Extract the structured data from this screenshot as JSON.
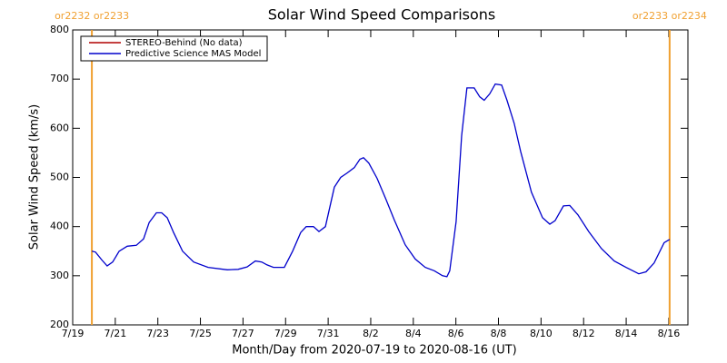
{
  "chart_data": {
    "type": "line",
    "title": "Solar Wind Speed Comparisons",
    "xlabel": "Month/Day from 2020-07-19 to 2020-08-16 (UT)",
    "ylabel": "Solar Wind Speed (km/s)",
    "xlim": [
      0,
      28.9
    ],
    "ylim": [
      200,
      800
    ],
    "yticks": [
      200,
      300,
      400,
      500,
      600,
      700,
      800
    ],
    "xticks": [
      {
        "value": 0,
        "label": "7/19"
      },
      {
        "value": 2,
        "label": "7/21"
      },
      {
        "value": 4,
        "label": "7/23"
      },
      {
        "value": 6,
        "label": "7/25"
      },
      {
        "value": 8,
        "label": "7/27"
      },
      {
        "value": 10,
        "label": "7/29"
      },
      {
        "value": 12,
        "label": "7/31"
      },
      {
        "value": 14,
        "label": "8/2"
      },
      {
        "value": 16,
        "label": "8/4"
      },
      {
        "value": 18,
        "label": "8/6"
      },
      {
        "value": 20,
        "label": "8/8"
      },
      {
        "value": 22,
        "label": "8/10"
      },
      {
        "value": 24,
        "label": "8/12"
      },
      {
        "value": 26,
        "label": "8/14"
      },
      {
        "value": 28,
        "label": "8/16"
      }
    ],
    "x": [
      0.9,
      1.07,
      1.37,
      1.62,
      1.88,
      2.18,
      2.56,
      2.99,
      3.33,
      3.59,
      3.93,
      4.18,
      4.44,
      4.74,
      5.16,
      5.68,
      6.36,
      7.26,
      7.77,
      8.19,
      8.58,
      8.88,
      9.13,
      9.43,
      9.94,
      10.33,
      10.71,
      10.97,
      11.31,
      11.57,
      11.87,
      12.29,
      12.59,
      12.89,
      13.23,
      13.49,
      13.66,
      13.91,
      14.3,
      14.72,
      15.11,
      15.62,
      16.09,
      16.56,
      16.99,
      17.37,
      17.58,
      17.71,
      18.01,
      18.27,
      18.52,
      18.86,
      19.12,
      19.33,
      19.59,
      19.85,
      20.15,
      20.4,
      20.74,
      21.04,
      21.55,
      22.07,
      22.41,
      22.66,
      23.05,
      23.35,
      23.73,
      24.24,
      24.84,
      25.44,
      25.99,
      26.59,
      26.93,
      27.31,
      27.78,
      28.04
    ],
    "series": [
      {
        "name": "STEREO-Behind (No data)",
        "color": "#b00000"
      },
      {
        "name": "Predictive Science MAS Model",
        "color": "#0000cc",
        "values": [
          350,
          348,
          332,
          320,
          328,
          350,
          360,
          362,
          375,
          408,
          428,
          428,
          418,
          388,
          350,
          328,
          317,
          312,
          313,
          318,
          330,
          328,
          322,
          317,
          317,
          350,
          388,
          400,
          400,
          390,
          400,
          480,
          500,
          509,
          520,
          537,
          540,
          529,
          498,
          455,
          413,
          363,
          334,
          317,
          310,
          300,
          298,
          310,
          410,
          585,
          682,
          682,
          664,
          657,
          670,
          690,
          688,
          657,
          610,
          553,
          470,
          418,
          405,
          412,
          442,
          443,
          424,
          390,
          355,
          330,
          317,
          304,
          308,
          326,
          367,
          374
        ]
      }
    ],
    "annotations": [
      {
        "x": 0.9,
        "text": "or2232 or2233",
        "color": "#f0a030"
      },
      {
        "x": 28.04,
        "text": "or2233 or2234",
        "color": "#f0a030"
      }
    ],
    "legend": "upper left"
  }
}
